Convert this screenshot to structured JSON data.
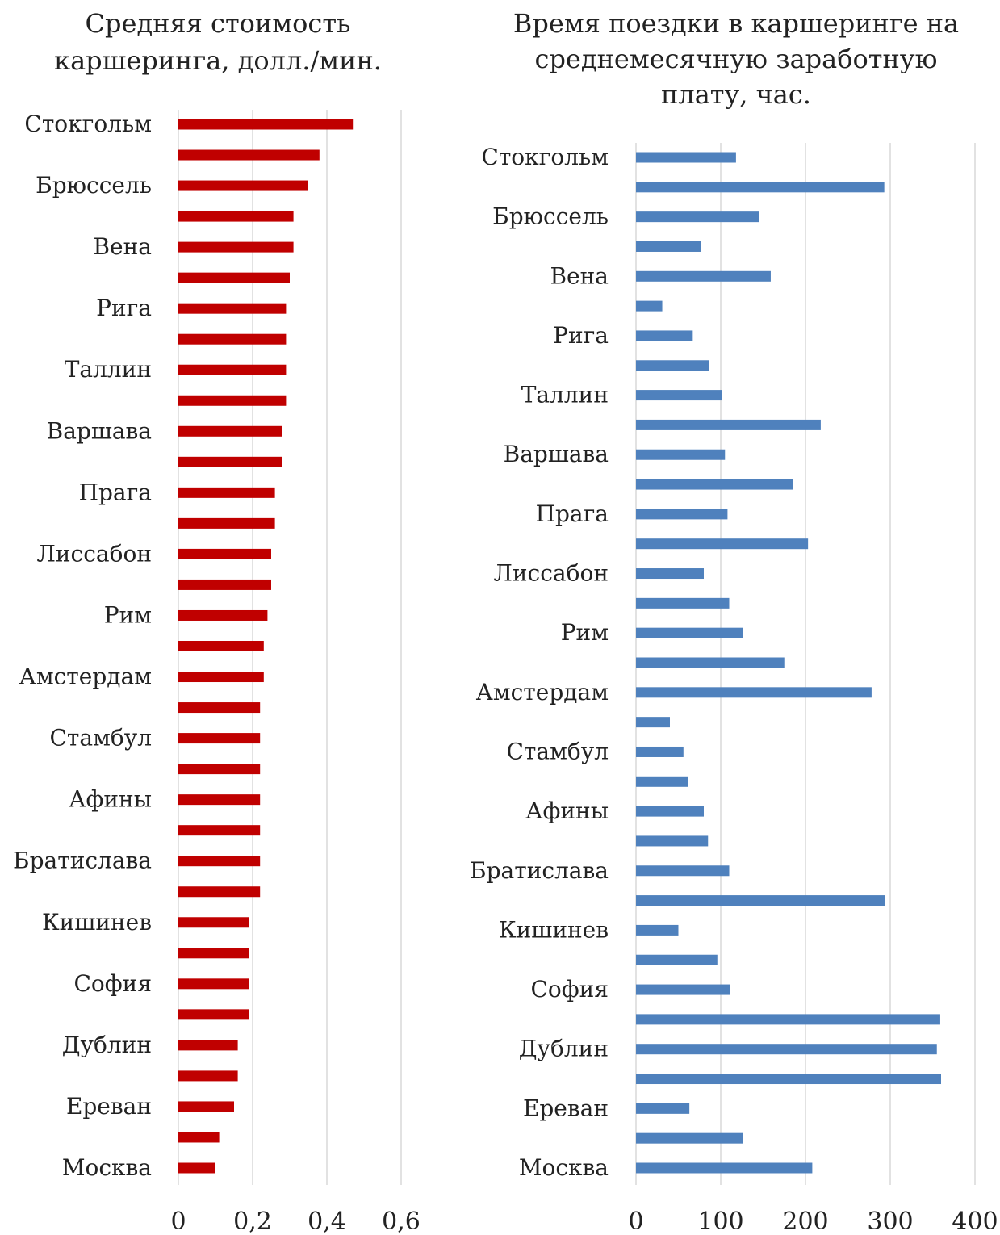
{
  "colors": {
    "left_bar": "#C00000",
    "right_bar": "#4F81BD"
  },
  "chart_data": [
    {
      "type": "bar",
      "orientation": "horizontal",
      "title_lines": [
        "Средняя стоимость",
        "каршеринга, долл./мин."
      ],
      "categories": [
        "Стокгольм",
        "",
        "Брюссель",
        "",
        "Вена",
        "",
        "Рига",
        "",
        "Таллин",
        "",
        "Варшава",
        "",
        "Прага",
        "",
        "Лиссабон",
        "",
        "Рим",
        "",
        "Амстердам",
        "",
        "Стамбул",
        "",
        "Афины",
        "",
        "Братислава",
        "",
        "Кишинев",
        "",
        "София",
        "",
        "Дублин",
        "",
        "Ереван",
        "",
        "Москва"
      ],
      "values": [
        0.47,
        0.38,
        0.35,
        0.31,
        0.31,
        0.3,
        0.29,
        0.29,
        0.29,
        0.29,
        0.28,
        0.28,
        0.26,
        0.26,
        0.25,
        0.25,
        0.24,
        0.23,
        0.23,
        0.22,
        0.22,
        0.22,
        0.22,
        0.22,
        0.22,
        0.22,
        0.19,
        0.19,
        0.19,
        0.19,
        0.16,
        0.16,
        0.15,
        0.11,
        0.1
      ],
      "xlim": [
        0,
        0.6
      ],
      "xticks": [
        "0",
        "0,2",
        "0,4",
        "0,6"
      ],
      "tick_values": [
        0,
        0.2,
        0.4,
        0.6
      ],
      "grid": true
    },
    {
      "type": "bar",
      "orientation": "horizontal",
      "title_lines": [
        "Время поездки в каршеринге на",
        "среднемесячную заработную",
        "плату, час."
      ],
      "categories": [
        "Стокгольм",
        "",
        "Брюссель",
        "",
        "Вена",
        "",
        "Рига",
        "",
        "Таллин",
        "",
        "Варшава",
        "",
        "Прага",
        "",
        "Лиссабон",
        "",
        "Рим",
        "",
        "Амстердам",
        "",
        "Стамбул",
        "",
        "Афины",
        "",
        "Братислава",
        "",
        "Кишинев",
        "",
        "София",
        "",
        "Дублин",
        "",
        "Ереван",
        "",
        "Москва"
      ],
      "values": [
        118,
        293,
        145,
        77,
        159,
        31,
        67,
        86,
        101,
        218,
        105,
        185,
        108,
        203,
        80,
        110,
        126,
        175,
        278,
        40,
        56,
        61,
        80,
        85,
        110,
        294,
        50,
        96,
        111,
        359,
        355,
        360,
        63,
        126,
        208
      ],
      "xlim": [
        0,
        400
      ],
      "xticks": [
        "0",
        "100",
        "200",
        "300",
        "400"
      ],
      "tick_values": [
        0,
        100,
        200,
        300,
        400
      ],
      "grid": true
    }
  ]
}
